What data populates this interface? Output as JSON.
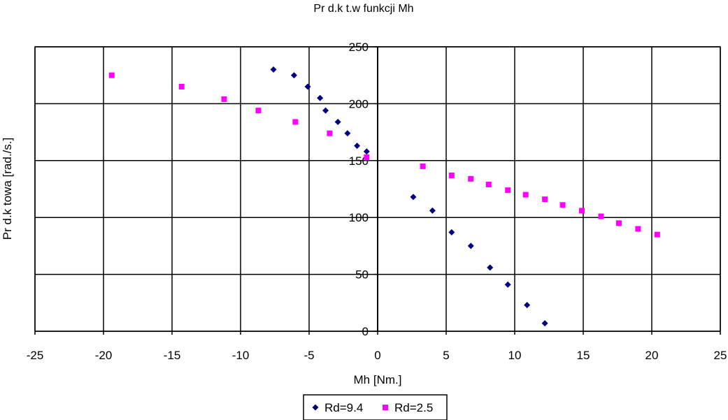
{
  "chart_data": {
    "type": "scatter",
    "title": "Pr  d.k  t.w funkcji Mh",
    "xlabel": "Mh [Nm.]",
    "ylabel": "Pr d.k towa [rad./s.]",
    "xlim": [
      -25,
      25
    ],
    "ylim": [
      0,
      250
    ],
    "x_ticks": [
      -25,
      -20,
      -15,
      -10,
      -5,
      0,
      5,
      10,
      15,
      20,
      25
    ],
    "y_ticks": [
      0,
      50,
      100,
      150,
      200,
      250
    ],
    "grid": true,
    "legend_position": "bottom",
    "series": [
      {
        "name": "Rd=9.4",
        "color": "#000080",
        "marker": "diamond",
        "x": [
          -7.6,
          -6.1,
          -5.1,
          -4.2,
          -3.8,
          -2.9,
          -2.2,
          -1.5,
          -0.8,
          2.6,
          4.0,
          5.4,
          6.8,
          8.2,
          9.5,
          10.9,
          12.2
        ],
        "y": [
          230,
          225,
          215,
          205,
          194,
          184,
          174,
          163,
          158,
          118,
          106,
          87,
          75,
          56,
          41,
          23,
          7
        ]
      },
      {
        "name": "Rd=2.5",
        "color": "#ff00ff",
        "marker": "square",
        "x": [
          -19.4,
          -14.3,
          -11.2,
          -8.7,
          -6.0,
          -3.5,
          -0.8,
          3.3,
          5.4,
          6.8,
          8.1,
          9.5,
          10.8,
          12.2,
          13.5,
          14.9,
          16.3,
          17.6,
          19.0,
          20.4
        ],
        "y": [
          225,
          215,
          204,
          194,
          184,
          174,
          153,
          145,
          137,
          134,
          129,
          124,
          120,
          116,
          111,
          106,
          101,
          95,
          90,
          85
        ]
      }
    ]
  }
}
